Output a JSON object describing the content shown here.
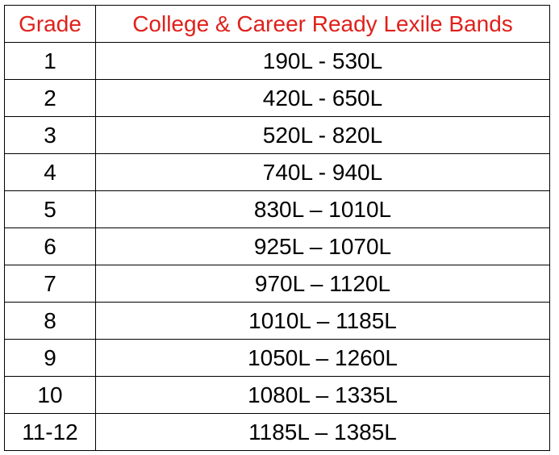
{
  "table": {
    "headers": {
      "grade": "Grade",
      "band": "College & Career Ready Lexile Bands"
    },
    "rows": [
      {
        "grade": "1",
        "band": "190L - 530L"
      },
      {
        "grade": "2",
        "band": "420L - 650L"
      },
      {
        "grade": "3",
        "band": "520L - 820L"
      },
      {
        "grade": "4",
        "band": "740L - 940L"
      },
      {
        "grade": "5",
        "band": "830L – 1010L"
      },
      {
        "grade": "6",
        "band": "925L – 1070L"
      },
      {
        "grade": "7",
        "band": "970L – 1120L"
      },
      {
        "grade": "8",
        "band": "1010L – 1185L"
      },
      {
        "grade": "9",
        "band": "1050L – 1260L"
      },
      {
        "grade": "10",
        "band": "1080L – 1335L"
      },
      {
        "grade": "11-12",
        "band": "1185L – 1385L"
      }
    ],
    "header_color": "#e0201b"
  }
}
